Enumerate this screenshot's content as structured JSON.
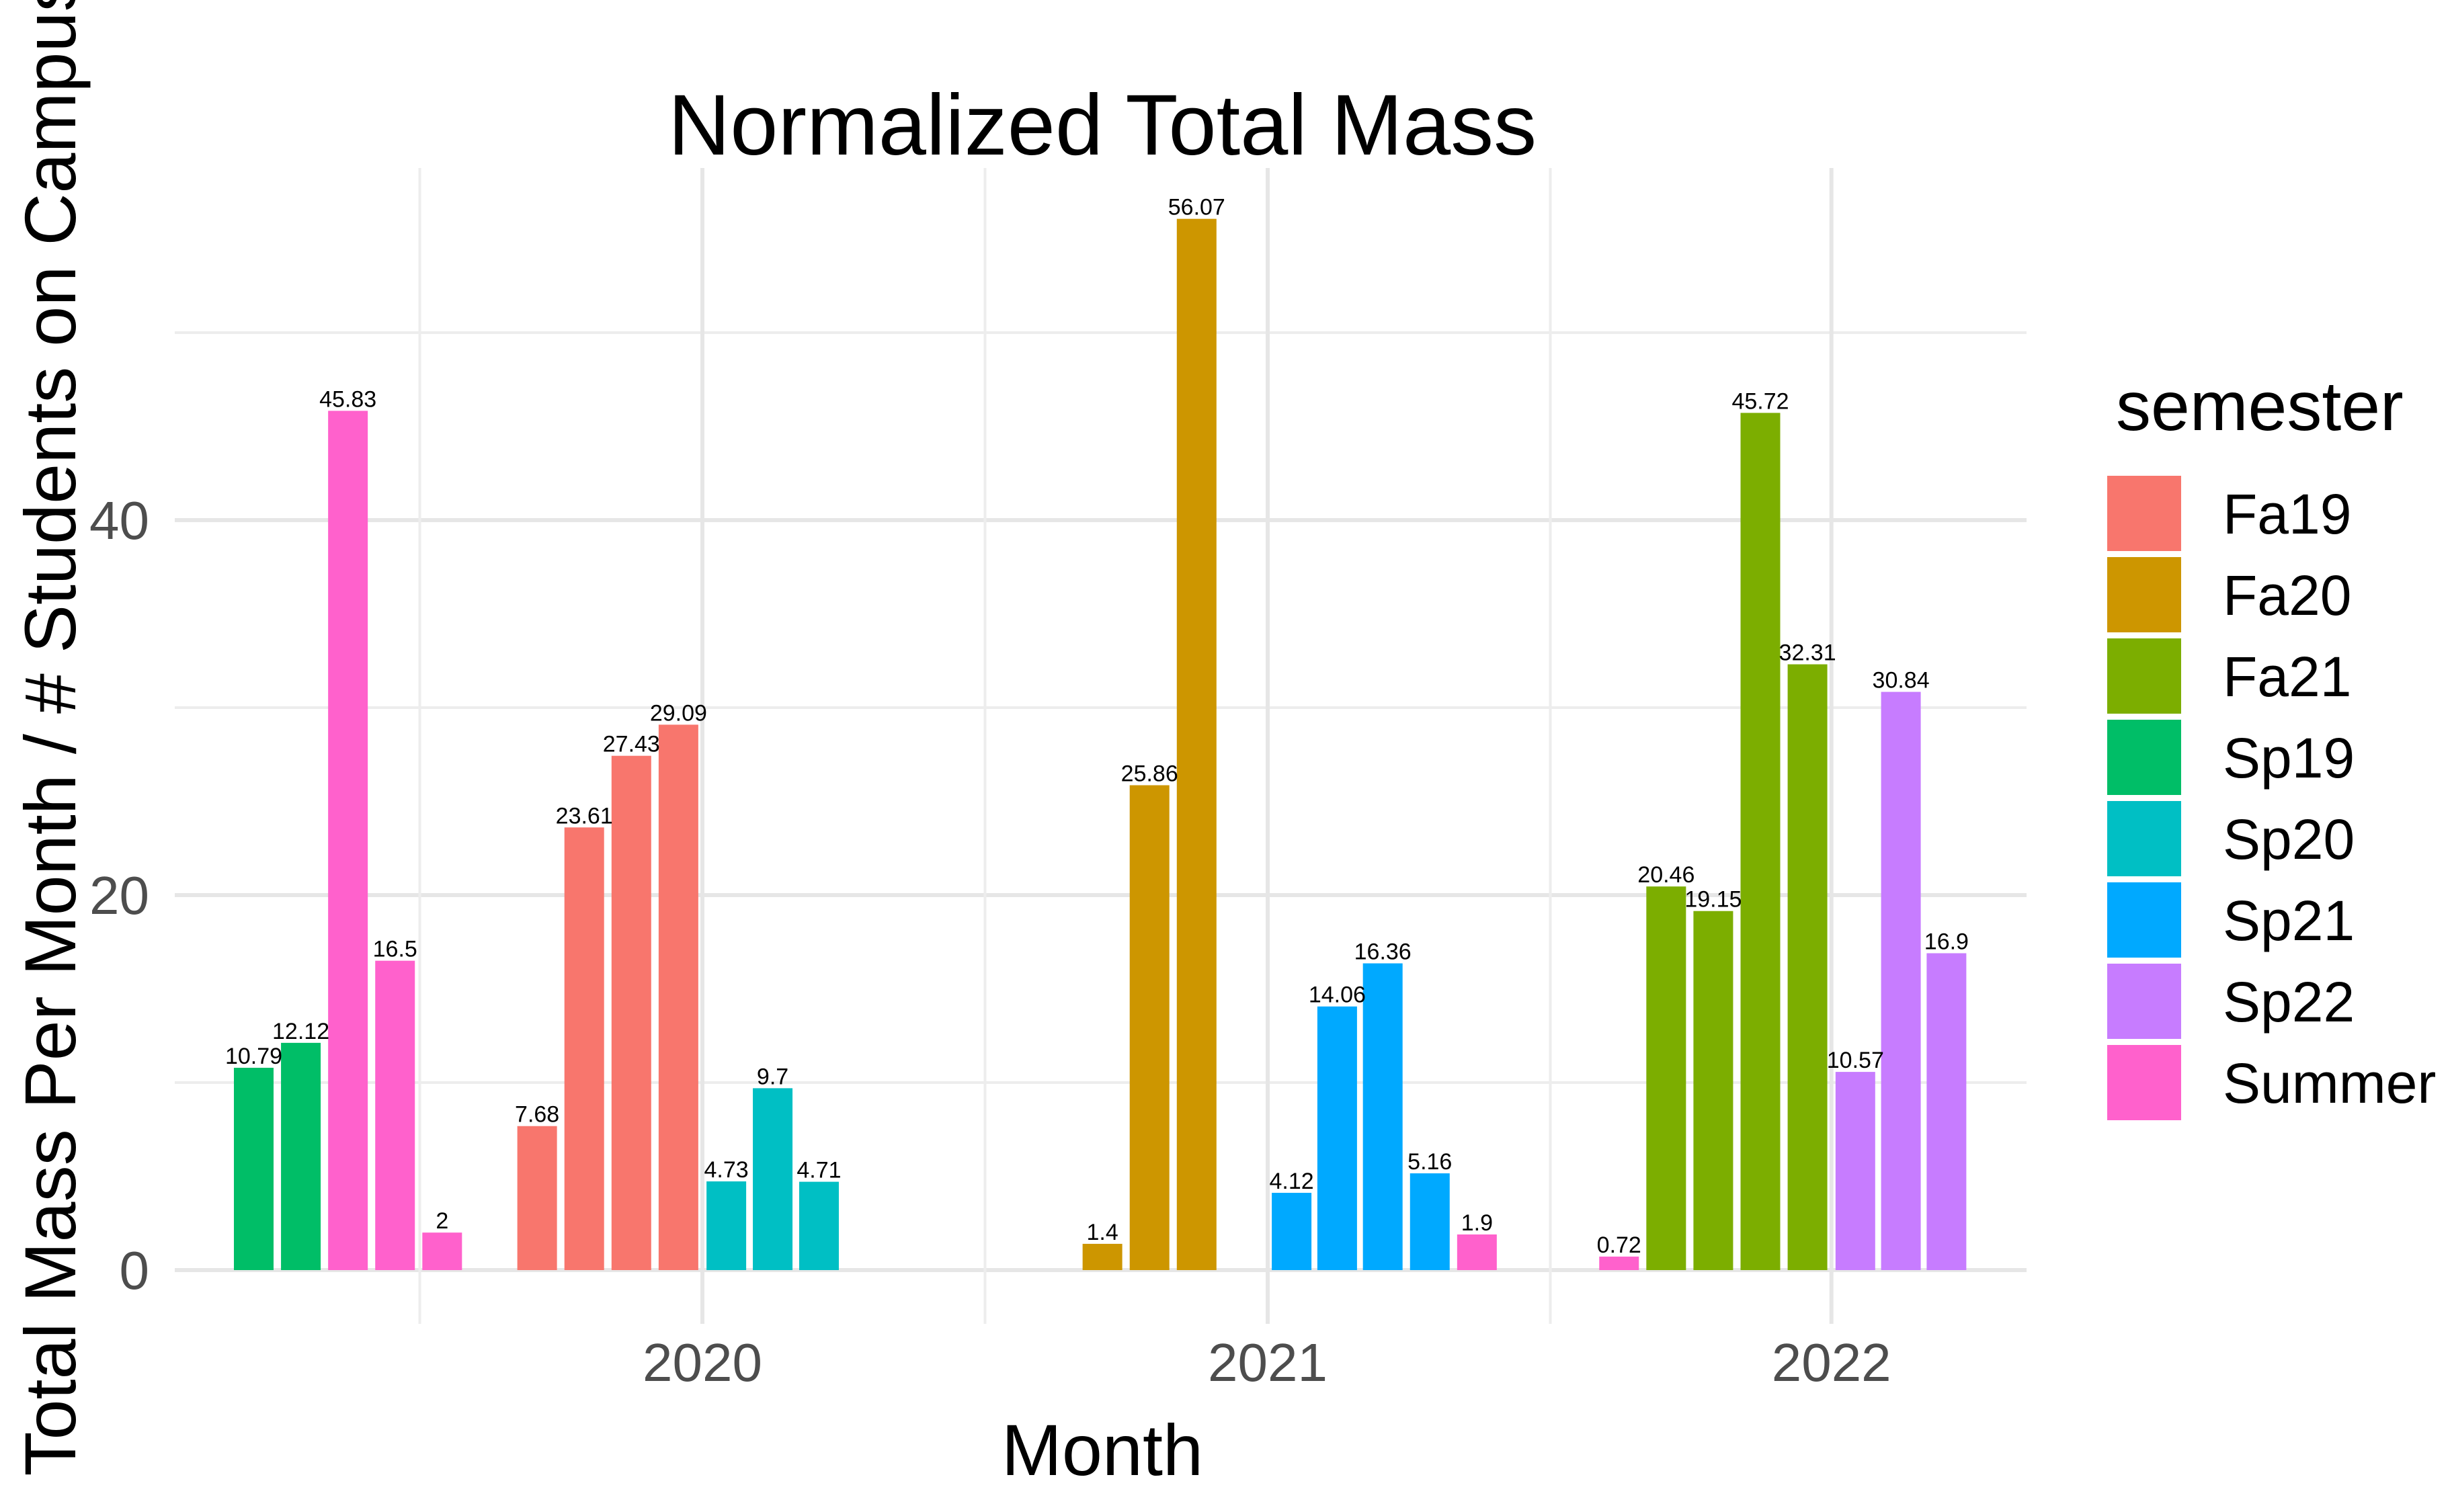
{
  "chart_data": {
    "type": "bar",
    "title": "Normalized Total Mass",
    "xlabel": "Month",
    "ylabel": "Total Mass Per Month / # Students on Campus",
    "ylim": [
      0,
      58
    ],
    "yticks": [
      0,
      20,
      40
    ],
    "xlim": [
      "2019-01-01",
      "2022-05-01"
    ],
    "xticks": [
      {
        "value": "2020-01-01",
        "label": "2020"
      },
      {
        "value": "2021-01-01",
        "label": "2021"
      },
      {
        "value": "2022-01-01",
        "label": "2022"
      }
    ],
    "grid": true,
    "legend": {
      "title": "semester",
      "position": "right"
    },
    "series": [
      {
        "name": "Fa19",
        "color": "#F8766D",
        "points": [
          {
            "month": "2019-09",
            "value": 7.68
          },
          {
            "month": "2019-10",
            "value": 23.61
          },
          {
            "month": "2019-11",
            "value": 27.43
          },
          {
            "month": "2019-12",
            "value": 29.09
          }
        ]
      },
      {
        "name": "Fa20",
        "color": "#CD9600",
        "points": [
          {
            "month": "2020-09",
            "value": 1.4
          },
          {
            "month": "2020-10",
            "value": 25.86
          },
          {
            "month": "2020-11",
            "value": 56.07
          }
        ]
      },
      {
        "name": "Fa21",
        "color": "#7CAE00",
        "points": [
          {
            "month": "2021-09",
            "value": 20.46
          },
          {
            "month": "2021-10",
            "value": 19.15
          },
          {
            "month": "2021-11",
            "value": 45.72
          },
          {
            "month": "2021-12",
            "value": 32.31
          }
        ]
      },
      {
        "name": "Sp19",
        "color": "#00BE67",
        "points": [
          {
            "month": "2019-03",
            "value": 10.79
          },
          {
            "month": "2019-04",
            "value": 12.12
          }
        ]
      },
      {
        "name": "Sp20",
        "color": "#00BFC4",
        "points": [
          {
            "month": "2020-01",
            "value": 4.73
          },
          {
            "month": "2020-02",
            "value": 9.7
          },
          {
            "month": "2020-03",
            "value": 4.71
          }
        ]
      },
      {
        "name": "Sp21",
        "color": "#00A9FF",
        "points": [
          {
            "month": "2021-01",
            "value": 4.12
          },
          {
            "month": "2021-02",
            "value": 14.06
          },
          {
            "month": "2021-03",
            "value": 16.36
          },
          {
            "month": "2021-04",
            "value": 5.16
          }
        ]
      },
      {
        "name": "Sp22",
        "color": "#C77CFF",
        "points": [
          {
            "month": "2022-01",
            "value": 10.57
          },
          {
            "month": "2022-02",
            "value": 30.84
          },
          {
            "month": "2022-03",
            "value": 16.9
          }
        ]
      },
      {
        "name": "Summer",
        "color": "#FF61CC",
        "points": [
          {
            "month": "2019-05",
            "value": 45.83
          },
          {
            "month": "2019-06",
            "value": 16.5
          },
          {
            "month": "2019-07",
            "value": 2
          },
          {
            "month": "2021-05",
            "value": 1.9
          },
          {
            "month": "2021-08",
            "value": 0.72
          }
        ]
      }
    ]
  }
}
